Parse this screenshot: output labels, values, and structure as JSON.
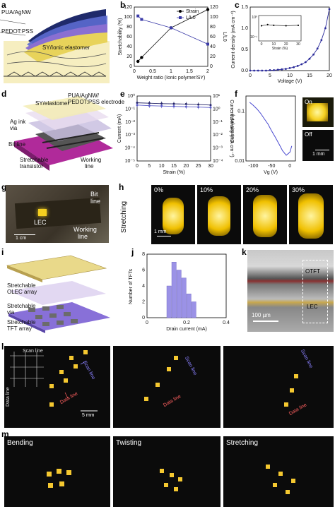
{
  "panels": {
    "a": {
      "letter": "a",
      "labels": {
        "top": "PUA/AgNW",
        "mid": "PEDOT:PSS",
        "sy": "SY/Ionic elastomer"
      }
    },
    "b": {
      "letter": "b"
    },
    "c": {
      "letter": "c"
    },
    "d": {
      "letter": "d",
      "labels": {
        "sy": "SY/elastomer",
        "pua": "PUA/AgNW/",
        "pedot": "PEDOT:PSS electrode",
        "agink": "Ag ink",
        "via": "via",
        "bitline": "Bit line",
        "stretchable": "Stretchable",
        "transistor": "transistor",
        "working": "Working",
        "line": "line"
      }
    },
    "e": {
      "letter": "e"
    },
    "f": {
      "letter": "f",
      "on": "On",
      "off": "Off",
      "scale": "1 mm"
    },
    "g": {
      "letter": "g",
      "lec": "LEC",
      "bit": "Bit",
      "line1": "line",
      "working": "Working",
      "line2": "line",
      "scale": "1 cm"
    },
    "h": {
      "letter": "h",
      "side": "Stretching",
      "scale": "1 mm",
      "strains": [
        "0%",
        "10%",
        "20%",
        "30%"
      ]
    },
    "i": {
      "letter": "i",
      "olec1": "Stretchable",
      "olec2": "OLEC array",
      "via1": "Stretchable",
      "via2": "via",
      "tft1": "Stretchable",
      "tft2": "TFT array"
    },
    "j": {
      "letter": "j"
    },
    "k": {
      "letter": "k",
      "otft": "OTFT",
      "lec": "LEC",
      "scale": "100 µm"
    },
    "l": {
      "letter": "l",
      "scan": "Scan line",
      "data": "Data line",
      "scale": "5 mm"
    },
    "m": {
      "letter": "m",
      "labels": [
        "Bending",
        "Twisting",
        "Stretching"
      ]
    }
  },
  "chart_data": [
    {
      "panel": "b",
      "type": "line",
      "xlabel": "Weight ratio (Ionic polymer/SY)",
      "ylabel": "Stretchability (%)",
      "ylabel2": "L/L0",
      "xlim": [
        0,
        2
      ],
      "ylim": [
        0,
        120
      ],
      "y2lim": [
        0,
        120
      ],
      "xticks": [
        0,
        0.5,
        1,
        1.5,
        2
      ],
      "yticks": [
        0,
        20,
        40,
        60,
        80,
        100,
        120
      ],
      "y2ticks": [
        0,
        20,
        40,
        60,
        80,
        100,
        120
      ],
      "series": [
        {
          "name": "Strain",
          "x": [
            0.1,
            0.2,
            1.0,
            2.0
          ],
          "y": [
            10,
            18,
            78,
            115
          ]
        },
        {
          "name": "L/L0",
          "x": [
            0.1,
            0.2,
            1.0,
            2.0
          ],
          "y": [
            102,
            95,
            78,
            45
          ]
        }
      ]
    },
    {
      "panel": "c",
      "type": "line",
      "xlabel": "Voltage (V)",
      "ylabel": "Current density (mA cm⁻²)",
      "xlim": [
        0,
        20
      ],
      "ylim": [
        0,
        1.5
      ],
      "xticks": [
        0,
        5,
        10,
        15,
        20
      ],
      "yticks": [
        0,
        0.5,
        1.0,
        1.5
      ],
      "series": [
        {
          "x": [
            0,
            1,
            2,
            3,
            4,
            5,
            6,
            7,
            8,
            9,
            10,
            11,
            12,
            13,
            14,
            15,
            16,
            17,
            18,
            19,
            20
          ],
          "y": [
            0,
            0,
            0,
            0,
            0,
            0.01,
            0.01,
            0.02,
            0.03,
            0.04,
            0.06,
            0.08,
            0.11,
            0.15,
            0.2,
            0.28,
            0.38,
            0.52,
            0.72,
            1.0,
            1.45
          ]
        }
      ],
      "inset": {
        "xlabel": "Strain (%)",
        "ylabel": "Current density (mA cm⁻²)",
        "xticks": [
          0,
          10,
          20,
          30
        ],
        "yticklabels": [
          "10⁰",
          "10⁻¹"
        ],
        "x": [
          0,
          5,
          10,
          20,
          30
        ],
        "y": [
          0.6,
          0.65,
          0.62,
          0.6,
          0.62
        ]
      }
    },
    {
      "panel": "e",
      "type": "line",
      "xlabel": "Strain (%)",
      "ylabel": "Current (mA)",
      "ylabel2": "Current density (mA cm⁻²)",
      "xlim": [
        0,
        30
      ],
      "ylim": [
        1e-05,
        1
      ],
      "xticks": [
        0,
        5,
        10,
        15,
        20,
        25,
        30
      ],
      "yticklabels": [
        "10⁰",
        "10⁻¹",
        "10⁻²",
        "10⁻³",
        "10⁻⁴",
        "10⁻⁵"
      ],
      "y2ticklabels": [
        "10¹",
        "10⁰",
        "10⁻¹",
        "10⁻²",
        "10⁻³",
        "10⁻⁴"
      ],
      "series": [
        {
          "x": [
            0,
            5,
            10,
            15,
            20,
            25,
            30
          ],
          "y": [
            0.3,
            0.28,
            0.26,
            0.25,
            0.24,
            0.22,
            0.2
          ]
        },
        {
          "x": [
            0,
            5,
            10,
            15,
            20,
            25,
            30
          ],
          "y": [
            0.2,
            0.18,
            0.17,
            0.16,
            0.15,
            0.14,
            0.13
          ]
        }
      ]
    },
    {
      "panel": "f",
      "type": "line",
      "xlabel": "Vg (V)",
      "ylabel": "Current (mA)",
      "xlim": [
        -120,
        15
      ],
      "ylim": [
        0.01,
        0.2
      ],
      "xticks": [
        -100,
        -50,
        0
      ],
      "yticklabels": [
        "0.1",
        "0.01"
      ],
      "series": [
        {
          "x": [
            -110,
            -100,
            -90,
            -80,
            -70,
            -60,
            -50,
            -40,
            -30,
            -20,
            -10,
            0,
            5
          ],
          "y": [
            0.15,
            0.13,
            0.11,
            0.09,
            0.07,
            0.055,
            0.04,
            0.03,
            0.022,
            0.016,
            0.013,
            0.015,
            0.02
          ]
        }
      ]
    },
    {
      "panel": "j",
      "type": "bar",
      "xlabel": "Drain current (mA)",
      "ylabel": "Number of TFTs",
      "xlim": [
        0,
        0.4
      ],
      "ylim": [
        0,
        8
      ],
      "xticks": [
        0,
        0.2,
        0.4
      ],
      "yticks": [
        0,
        2,
        4,
        6,
        8
      ],
      "bin_width": 0.025,
      "bins": [
        0.1,
        0.125,
        0.15,
        0.175,
        0.2,
        0.225
      ],
      "values": [
        4,
        7,
        6,
        5,
        3,
        2
      ]
    }
  ]
}
